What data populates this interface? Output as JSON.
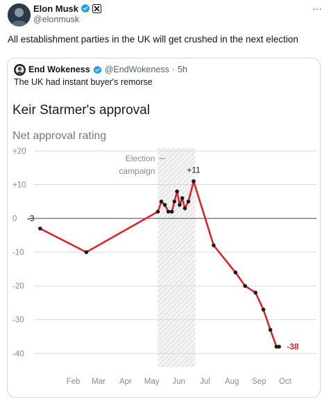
{
  "author": {
    "display_name": "Elon Musk",
    "handle": "@elonmusk",
    "verified_icon": "verified-badge-icon",
    "affiliate_icon": "x-logo-icon"
  },
  "post": {
    "text": "All establishment parties in the UK will get crushed in the next election",
    "more_label": "···"
  },
  "quoted_post": {
    "display_name": "End Wokeness",
    "handle": "@EndWokeness",
    "separator": "·",
    "time": "5h",
    "text": "The UK had instant buyer's remorse"
  },
  "colors": {
    "line": "#d9262c",
    "verified": "#1d9bf0",
    "label_neg": "#d9262c"
  },
  "chart_data": {
    "type": "line",
    "title": "Keir Starmer's approval",
    "subtitle": "Net approval rating",
    "ylim": [
      -42,
      20
    ],
    "y_ticks": [
      20,
      10,
      0,
      -10,
      -20,
      -30,
      -40
    ],
    "y_tick_labels": [
      "+20",
      "+10",
      "0",
      "-10",
      "-20",
      "-30",
      "-40"
    ],
    "x_tick_labels": [
      "Feb",
      "Mar",
      "Apr",
      "May",
      "Jun",
      "Jul",
      "Aug",
      "Sep",
      "Oct"
    ],
    "grid": true,
    "band": {
      "label_lines": [
        "Election",
        "campaign"
      ],
      "start": "2024-05-22",
      "end": "2024-07-04"
    },
    "series": [
      {
        "x": [
          "2024-01-08",
          "2024-03-01",
          "2024-05-22",
          "2024-05-26",
          "2024-05-30",
          "2024-06-03",
          "2024-06-07",
          "2024-06-10",
          "2024-06-13",
          "2024-06-16",
          "2024-06-19",
          "2024-06-22",
          "2024-06-26",
          "2024-07-02",
          "2024-07-25",
          "2024-08-19",
          "2024-08-30",
          "2024-09-11",
          "2024-09-20",
          "2024-09-28",
          "2024-10-05",
          "2024-10-08"
        ],
        "y": [
          -3,
          -10,
          2,
          5,
          4,
          2,
          2,
          5,
          8,
          4,
          6,
          3,
          5,
          11,
          -8,
          -16,
          -20,
          -22,
          -27,
          -33,
          -38,
          -38
        ]
      }
    ],
    "annotations": [
      {
        "label": "-3",
        "x": "2024-01-08",
        "y": -3,
        "position": "start"
      },
      {
        "label": "+11",
        "x": "2024-07-02",
        "y": 11,
        "position": "above"
      },
      {
        "label": "-38",
        "x": "2024-10-08",
        "y": -38,
        "position": "right"
      }
    ]
  }
}
